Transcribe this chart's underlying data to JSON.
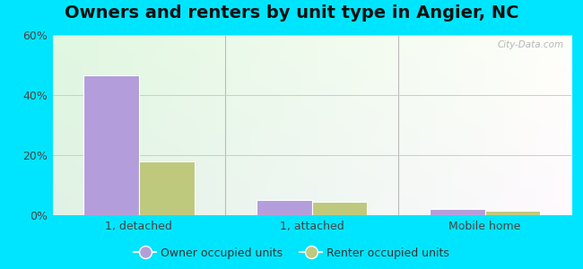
{
  "title": "Owners and renters by unit type in Angier, NC",
  "categories": [
    "1, detached",
    "1, attached",
    "Mobile home"
  ],
  "owner_values": [
    46.5,
    5.0,
    2.0
  ],
  "renter_values": [
    18.0,
    4.5,
    1.5
  ],
  "owner_color": "#b39ddb",
  "renter_color": "#bec97e",
  "ylim": [
    0,
    60
  ],
  "yticks": [
    0,
    20,
    40,
    60
  ],
  "ytick_labels": [
    "0%",
    "20%",
    "40%",
    "60%"
  ],
  "bar_width": 0.32,
  "outer_bg": "#00e5ff",
  "title_fontsize": 14,
  "legend_labels": [
    "Owner occupied units",
    "Renter occupied units"
  ],
  "watermark": "City-Data.com"
}
